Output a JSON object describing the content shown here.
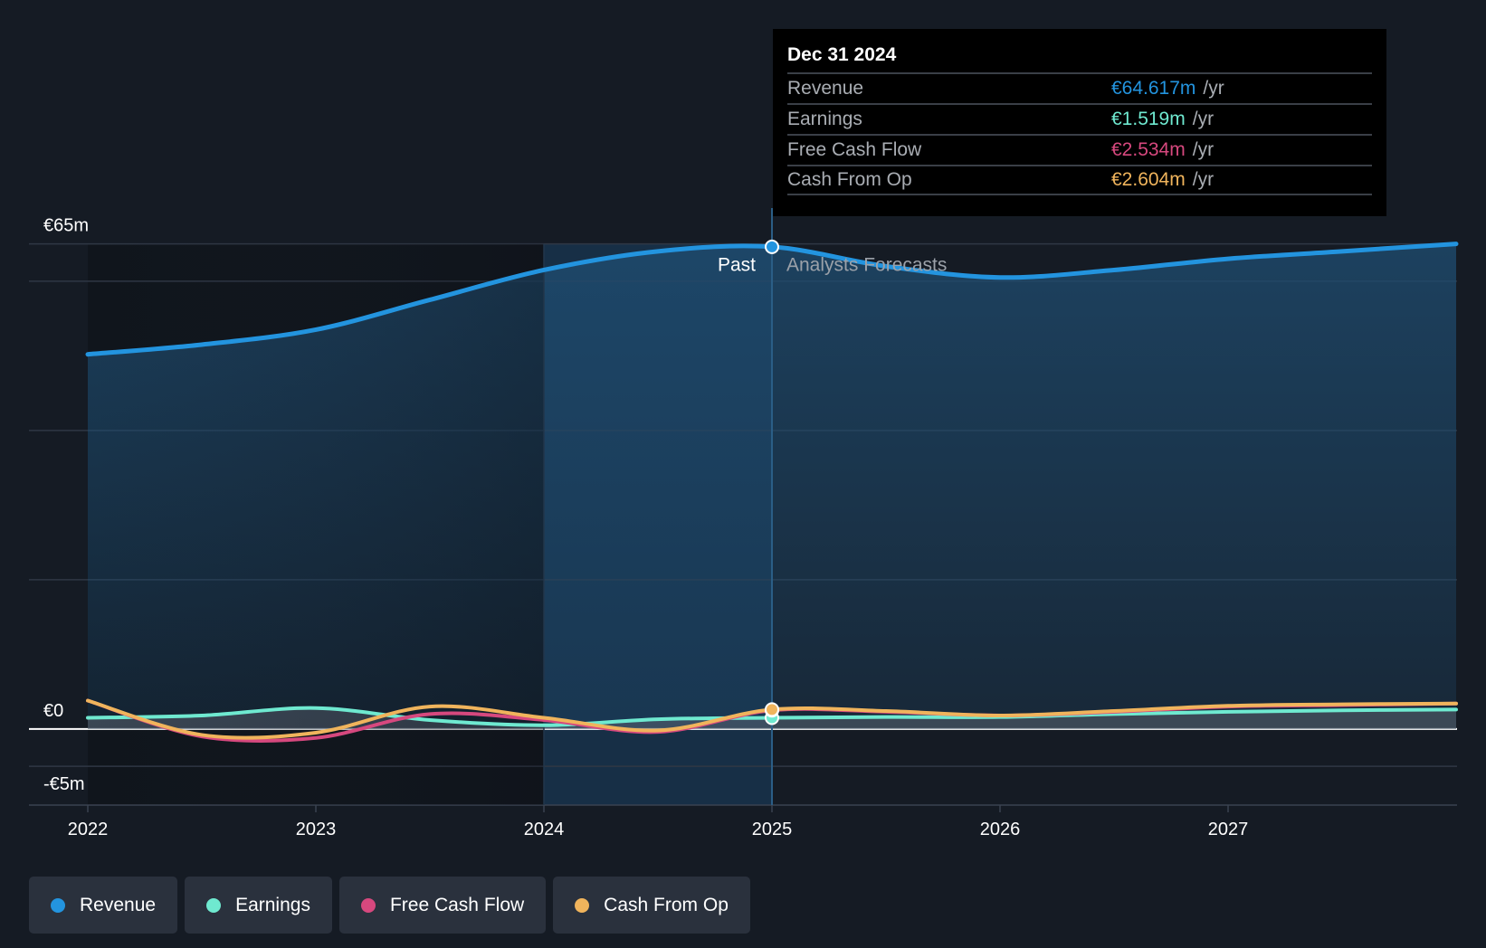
{
  "chart_data": {
    "type": "line",
    "currency_symbol": "€",
    "x_axis": {
      "ticks": [
        2022,
        2023,
        2024,
        2025,
        2026,
        2027
      ],
      "tick_labels": [
        "2022",
        "2023",
        "2024",
        "2025",
        "2026",
        "2027"
      ],
      "range": [
        2021.75,
        2028.0
      ]
    },
    "y_axis": {
      "range": [
        -10.2,
        69.8
      ],
      "labeled_ticks": [
        {
          "value": 65,
          "label": "€65m"
        },
        {
          "value": 0,
          "label": "€0"
        },
        {
          "value": -5,
          "label": "-€5m"
        }
      ],
      "gridlines": [
        65,
        60,
        40,
        20,
        0,
        -5
      ]
    },
    "regions": {
      "past_label": "Past",
      "forecast_label": "Analysts Forecasts",
      "highlight_start": 2024.0,
      "divider_x": 2025.0
    },
    "series": [
      {
        "name": "Revenue",
        "color": "#2394df",
        "points": [
          [
            2022.0,
            50.2
          ],
          [
            2022.5,
            51.5
          ],
          [
            2023.0,
            53.5
          ],
          [
            2023.5,
            57.5
          ],
          [
            2024.0,
            61.5
          ],
          [
            2024.5,
            64.0
          ],
          [
            2025.0,
            64.6
          ],
          [
            2025.5,
            62.0
          ],
          [
            2026.0,
            60.5
          ],
          [
            2026.5,
            61.5
          ],
          [
            2027.0,
            63.0
          ],
          [
            2027.5,
            64.0
          ],
          [
            2028.0,
            65.0
          ]
        ]
      },
      {
        "name": "Earnings",
        "color": "#6fe9d0",
        "points": [
          [
            2022.0,
            1.5
          ],
          [
            2022.5,
            1.8
          ],
          [
            2023.0,
            2.8
          ],
          [
            2023.5,
            1.2
          ],
          [
            2024.0,
            0.5
          ],
          [
            2024.5,
            1.3
          ],
          [
            2025.0,
            1.5
          ],
          [
            2025.5,
            1.6
          ],
          [
            2026.0,
            1.6
          ],
          [
            2026.5,
            2.0
          ],
          [
            2027.0,
            2.3
          ],
          [
            2027.5,
            2.5
          ],
          [
            2028.0,
            2.6
          ]
        ]
      },
      {
        "name": "Free Cash Flow",
        "color": "#d6487e",
        "points": [
          [
            2022.0,
            3.8
          ],
          [
            2022.5,
            -1.0
          ],
          [
            2023.0,
            -1.2
          ],
          [
            2023.5,
            2.0
          ],
          [
            2024.0,
            1.2
          ],
          [
            2024.5,
            -0.4
          ],
          [
            2025.0,
            2.5
          ],
          [
            2025.5,
            2.3
          ],
          [
            2026.0,
            1.8
          ],
          [
            2026.5,
            2.3
          ],
          [
            2027.0,
            3.0
          ],
          [
            2027.5,
            3.2
          ],
          [
            2028.0,
            3.4
          ]
        ]
      },
      {
        "name": "Cash From Op",
        "color": "#f0b45c",
        "points": [
          [
            2022.0,
            3.8
          ],
          [
            2022.5,
            -0.8
          ],
          [
            2023.0,
            -0.5
          ],
          [
            2023.5,
            3.0
          ],
          [
            2024.0,
            1.5
          ],
          [
            2024.5,
            -0.2
          ],
          [
            2025.0,
            2.6
          ],
          [
            2025.5,
            2.4
          ],
          [
            2026.0,
            1.8
          ],
          [
            2026.5,
            2.4
          ],
          [
            2027.0,
            3.1
          ],
          [
            2027.5,
            3.3
          ],
          [
            2028.0,
            3.4
          ]
        ]
      }
    ],
    "tooltip": {
      "date": "Dec 31 2024",
      "x": 2025.0,
      "rows": [
        {
          "label": "Revenue",
          "value": "€64.617m",
          "unit": "/yr",
          "color": "#2394df"
        },
        {
          "label": "Earnings",
          "value": "€1.519m",
          "unit": "/yr",
          "color": "#6fe9d0"
        },
        {
          "label": "Free Cash Flow",
          "value": "€2.534m",
          "unit": "/yr",
          "color": "#d6487e"
        },
        {
          "label": "Cash From Op",
          "value": "€2.604m",
          "unit": "/yr",
          "color": "#f0b45c"
        }
      ]
    }
  },
  "legend": {
    "items": [
      {
        "label": "Revenue",
        "color": "#2394df"
      },
      {
        "label": "Earnings",
        "color": "#6fe9d0"
      },
      {
        "label": "Free Cash Flow",
        "color": "#d6487e"
      },
      {
        "label": "Cash From Op",
        "color": "#f0b45c"
      }
    ]
  }
}
